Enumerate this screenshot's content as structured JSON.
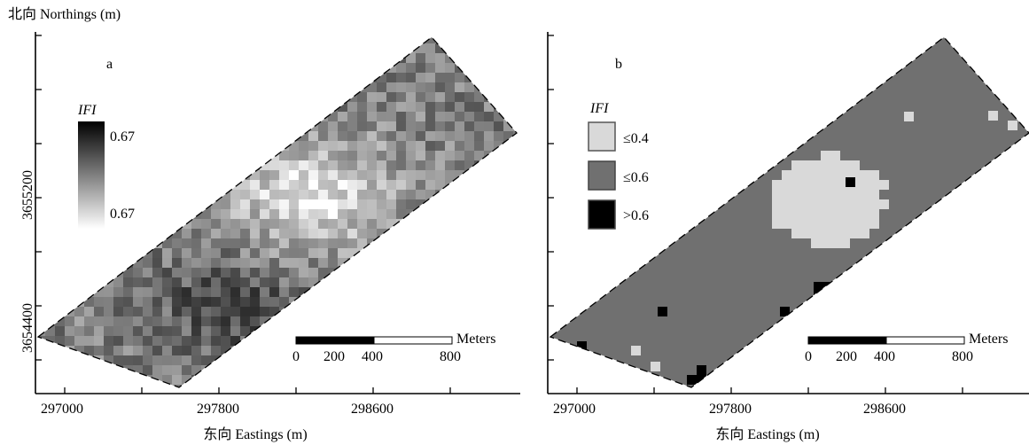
{
  "y_axis_title": "北向 Northings (m)",
  "y_tick_labels": [
    "3655200",
    "3654400"
  ],
  "x_tick_labels": [
    "297000",
    "297800",
    "298600"
  ],
  "x_axis_title": "东向 Eastings (m)",
  "panel_a": {
    "label": "a",
    "legend_title": "IFI",
    "legend_max_label": "0.67",
    "legend_min_label": "0.67"
  },
  "panel_b": {
    "label": "b",
    "legend_title": "IFI",
    "classes": [
      {
        "label": "≤0.4",
        "color": "#d9d9d9"
      },
      {
        "label": "≤0.6",
        "color": "#707070"
      },
      {
        "label": ">0.6",
        "color": "#000000"
      }
    ]
  },
  "scale_bar": {
    "unit": "Meters",
    "labels": [
      "0",
      "200",
      "400",
      "800"
    ]
  },
  "colors": {
    "light_class": "#d9d9d9",
    "mid_class": "#707070",
    "high_class": "#000000"
  }
}
